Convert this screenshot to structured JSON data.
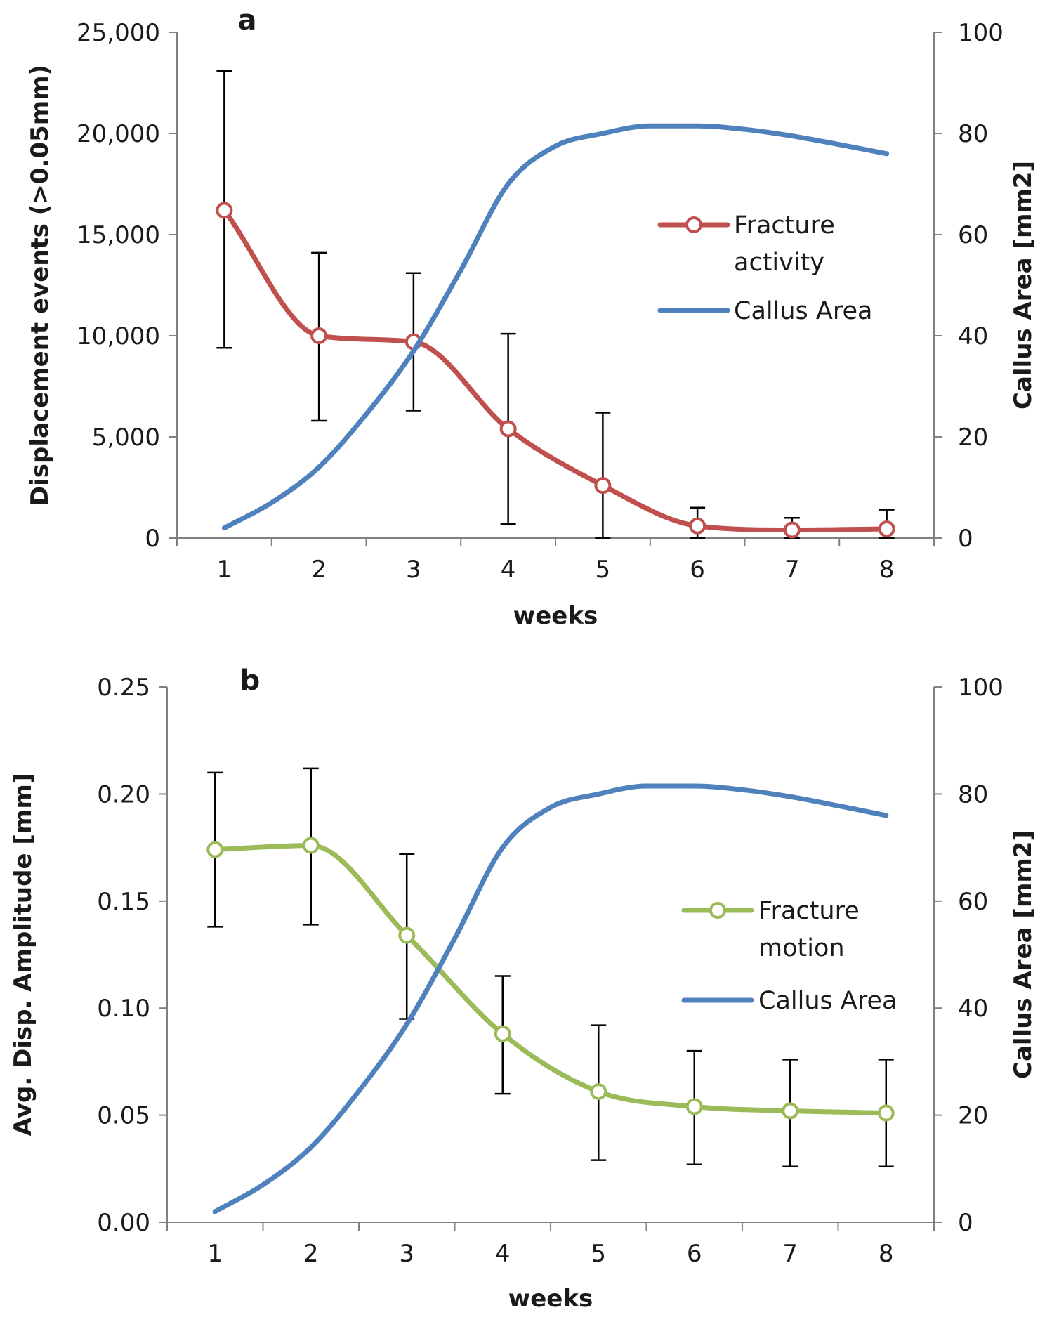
{
  "chart_data": [
    {
      "type": "line",
      "panel_label": "a",
      "categories": [
        "1",
        "2",
        "3",
        "4",
        "5",
        "6",
        "7",
        "8"
      ],
      "xlabel": "weeks",
      "ylabel_left": "Displacement events (>0.05mm)",
      "ylabel_right": "Callus Area [mm2]",
      "ylim_left": [
        0,
        25000
      ],
      "ylim_right": [
        0,
        100
      ],
      "yticks_left": [
        "0",
        "5,000",
        "10,000",
        "15,000",
        "20,000",
        "25,000"
      ],
      "yticks_right": [
        "0",
        "20",
        "40",
        "60",
        "80",
        "100"
      ],
      "grid": false,
      "legend_position": "center-right",
      "series": [
        {
          "name": "Fracture activity",
          "legend_lines": [
            "Fracture",
            "activity"
          ],
          "axis": "left",
          "color": "#c0504d",
          "markers": true,
          "values": [
            16200,
            10000,
            9700,
            5400,
            2600,
            600,
            400,
            450
          ],
          "error_upper": [
            23100,
            14100,
            13100,
            10100,
            6200,
            1500,
            1000,
            1400
          ],
          "error_lower": [
            9400,
            5800,
            6300,
            700,
            0,
            0,
            0,
            0
          ]
        },
        {
          "name": "Callus Area",
          "legend_lines": [
            "Callus Area"
          ],
          "axis": "right",
          "color": "#4f81bd",
          "markers": false,
          "x": [
            1,
            1.5,
            2,
            2.5,
            3,
            3.5,
            4,
            4.5,
            5,
            5.5,
            6,
            6.5,
            7,
            7.5,
            8
          ],
          "values": [
            2,
            7,
            14,
            24.5,
            37,
            53,
            70,
            77.5,
            80,
            81.5,
            81.5,
            80.8,
            79.5,
            77.8,
            76
          ]
        }
      ]
    },
    {
      "type": "line",
      "panel_label": "b",
      "categories": [
        "1",
        "2",
        "3",
        "4",
        "5",
        "6",
        "7",
        "8"
      ],
      "xlabel": "weeks",
      "ylabel_left": "Avg. Disp. Amplitude [mm]",
      "ylabel_right": "Callus Area [mm2]",
      "ylim_left": [
        0,
        0.25
      ],
      "ylim_right": [
        0,
        100
      ],
      "yticks_left": [
        "0.00",
        "0.05",
        "0.10",
        "0.15",
        "0.20",
        "0.25"
      ],
      "yticks_right": [
        "0",
        "20",
        "40",
        "60",
        "80",
        "100"
      ],
      "grid": false,
      "legend_position": "center-right",
      "series": [
        {
          "name": "Fracture motion",
          "legend_lines": [
            "Fracture",
            "motion"
          ],
          "axis": "left",
          "color": "#9bbb59",
          "markers": true,
          "values": [
            0.174,
            0.176,
            0.134,
            0.088,
            0.061,
            0.054,
            0.052,
            0.051
          ],
          "error_upper": [
            0.21,
            0.212,
            0.172,
            0.115,
            0.092,
            0.08,
            0.076,
            0.076
          ],
          "error_lower": [
            0.138,
            0.139,
            0.095,
            0.06,
            0.029,
            0.027,
            0.026,
            0.026
          ]
        },
        {
          "name": "Callus Area",
          "legend_lines": [
            "Callus Area"
          ],
          "axis": "right",
          "color": "#4f81bd",
          "markers": false,
          "x": [
            1,
            1.5,
            2,
            2.5,
            3,
            3.5,
            4,
            4.5,
            5,
            5.5,
            6,
            6.5,
            7,
            7.5,
            8
          ],
          "values": [
            2,
            7,
            14,
            24.5,
            37,
            53,
            70,
            77.5,
            80,
            81.5,
            81.5,
            80.8,
            79.5,
            77.8,
            76
          ]
        }
      ]
    }
  ]
}
